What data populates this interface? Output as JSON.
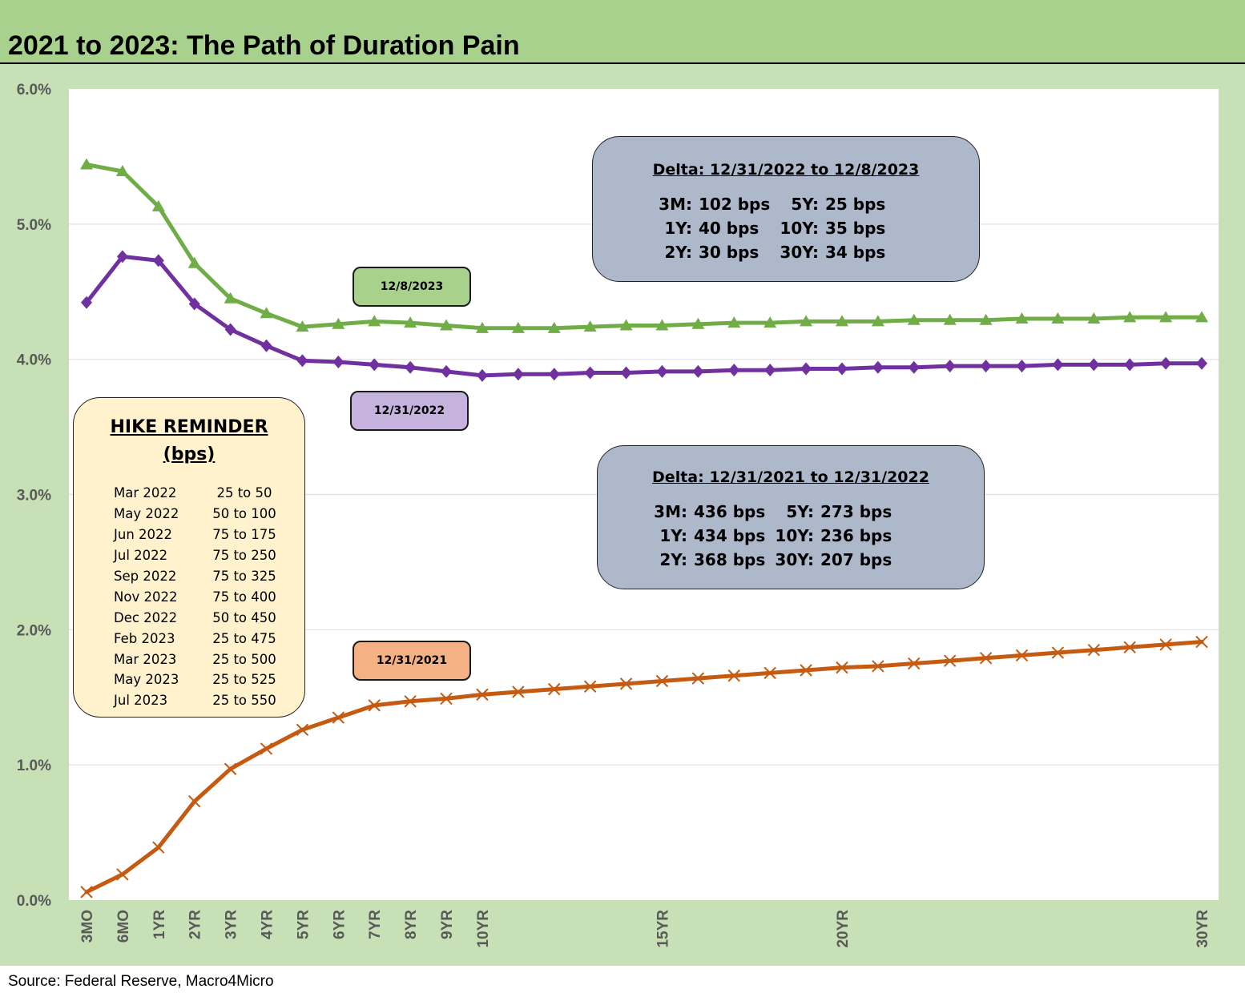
{
  "title": "2021 to 2023: The Path of Duration Pain",
  "source": "Source: Federal Reserve, Macro4Micro",
  "colors": {
    "frame": "#c7e0b5",
    "title_bar": "#a9d18e",
    "green": "#70ad47",
    "purple": "#7030a0",
    "orange": "#c55a11"
  },
  "chart_data": {
    "type": "line",
    "x": [
      "3MO",
      "6MO",
      "1YR",
      "2YR",
      "3YR",
      "4YR",
      "5YR",
      "6YR",
      "7YR",
      "8YR",
      "9YR",
      "10YR",
      "11YR",
      "12YR",
      "13YR",
      "14YR",
      "15YR",
      "16YR",
      "17YR",
      "18YR",
      "19YR",
      "20YR",
      "21YR",
      "22YR",
      "23YR",
      "24YR",
      "25YR",
      "26YR",
      "27YR",
      "28YR",
      "29YR",
      "30YR"
    ],
    "x_tick_labels": [
      "3MO",
      "6MO",
      "1YR",
      "2YR",
      "3YR",
      "4YR",
      "5YR",
      "6YR",
      "7YR",
      "8YR",
      "9YR",
      "10YR",
      "15YR",
      "20YR",
      "30YR"
    ],
    "yticks": [
      "0.0%",
      "1.0%",
      "2.0%",
      "3.0%",
      "4.0%",
      "5.0%",
      "6.0%"
    ],
    "ylim": [
      0,
      6
    ],
    "grid": true,
    "series": [
      {
        "name": "12/8/2023",
        "color": "#70ad47",
        "marker": "triangle",
        "values": [
          5.44,
          5.39,
          5.13,
          4.71,
          4.45,
          4.34,
          4.24,
          4.26,
          4.28,
          4.27,
          4.25,
          4.23,
          4.23,
          4.23,
          4.24,
          4.25,
          4.25,
          4.26,
          4.27,
          4.27,
          4.28,
          4.28,
          4.28,
          4.29,
          4.29,
          4.29,
          4.3,
          4.3,
          4.3,
          4.31,
          4.31,
          4.31
        ]
      },
      {
        "name": "12/31/2022",
        "color": "#7030a0",
        "marker": "diamond",
        "values": [
          4.42,
          4.76,
          4.73,
          4.41,
          4.22,
          4.1,
          3.99,
          3.98,
          3.96,
          3.94,
          3.91,
          3.88,
          3.89,
          3.89,
          3.9,
          3.9,
          3.91,
          3.91,
          3.92,
          3.92,
          3.93,
          3.93,
          3.94,
          3.94,
          3.95,
          3.95,
          3.95,
          3.96,
          3.96,
          3.96,
          3.97,
          3.97
        ]
      },
      {
        "name": "12/31/2021",
        "color": "#c55a11",
        "marker": "x",
        "values": [
          0.06,
          0.19,
          0.39,
          0.73,
          0.97,
          1.12,
          1.26,
          1.35,
          1.44,
          1.47,
          1.49,
          1.52,
          1.54,
          1.56,
          1.58,
          1.6,
          1.62,
          1.64,
          1.66,
          1.68,
          1.7,
          1.72,
          1.73,
          1.75,
          1.77,
          1.79,
          1.81,
          1.83,
          1.85,
          1.87,
          1.89,
          1.91
        ]
      }
    ],
    "series_labels": [
      {
        "text": "12/8/2023",
        "fill": "#a9d18e"
      },
      {
        "text": "12/31/2022",
        "fill": "#c5b3dd"
      },
      {
        "text": "12/31/2021",
        "fill": "#f4b183"
      }
    ]
  },
  "delta_2023": {
    "title": "Delta: 12/31/2022 to 12/8/2023",
    "rows": [
      {
        "l1": "3M:",
        "v1": "102 bps",
        "l2": "5Y:",
        "v2": "25 bps"
      },
      {
        "l1": "1Y:",
        "v1": "40 bps",
        "l2": "10Y:",
        "v2": "35 bps"
      },
      {
        "l1": "2Y:",
        "v1": "30 bps",
        "l2": "30Y:",
        "v2": "34 bps"
      }
    ]
  },
  "delta_2022": {
    "title": "Delta: 12/31/2021 to 12/31/2022",
    "rows": [
      {
        "l1": "3M:",
        "v1": "436 bps",
        "l2": "5Y:",
        "v2": "273 bps"
      },
      {
        "l1": "1Y:",
        "v1": "434 bps",
        "l2": "10Y:",
        "v2": "236 bps"
      },
      {
        "l1": "2Y:",
        "v1": "368 bps",
        "l2": "30Y:",
        "v2": "207 bps"
      }
    ]
  },
  "hike_reminder": {
    "title": "HIKE REMINDER",
    "subtitle": "(bps)",
    "rows": [
      {
        "date": "Mar 2022",
        "value": "25 to 50"
      },
      {
        "date": "May 2022",
        "value": "50 to 100"
      },
      {
        "date": "Jun 2022",
        "value": "75 to 175"
      },
      {
        "date": "Jul 2022",
        "value": "75 to 250"
      },
      {
        "date": "Sep 2022",
        "value": "75 to 325"
      },
      {
        "date": "Nov 2022",
        "value": "75 to 400"
      },
      {
        "date": "Dec 2022",
        "value": "50 to 450"
      },
      {
        "date": "Feb 2023",
        "value": "25 to 475"
      },
      {
        "date": "Mar 2023",
        "value": "25 to 500"
      },
      {
        "date": "May 2023",
        "value": "25 to 525"
      },
      {
        "date": "Jul 2023",
        "value": "25 to 550"
      }
    ]
  }
}
